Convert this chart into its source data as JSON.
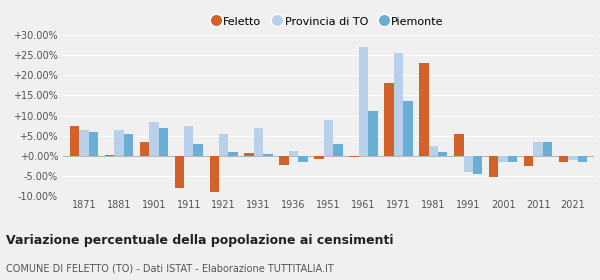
{
  "years": [
    1871,
    1881,
    1901,
    1911,
    1921,
    1931,
    1936,
    1951,
    1961,
    1971,
    1981,
    1991,
    2001,
    2011,
    2021
  ],
  "feletto": [
    7.5,
    0.3,
    3.5,
    -8.0,
    -9.0,
    0.7,
    -2.2,
    -0.8,
    -0.3,
    18.0,
    23.0,
    5.5,
    -5.2,
    -2.5,
    -1.5
  ],
  "provincia_to": [
    6.5,
    6.5,
    8.5,
    7.5,
    5.5,
    7.0,
    1.2,
    9.0,
    27.0,
    25.5,
    2.5,
    -4.0,
    -1.5,
    3.5,
    -1.0
  ],
  "piemonte": [
    6.0,
    5.5,
    7.0,
    3.0,
    1.0,
    0.5,
    -1.5,
    3.0,
    11.0,
    13.5,
    1.0,
    -4.5,
    -1.5,
    3.5,
    -1.5
  ],
  "color_feletto": "#d2622a",
  "color_provincia": "#b8d0ea",
  "color_piemonte": "#6aadd5",
  "title": "Variazione percentuale della popolazione ai censimenti",
  "subtitle": "COMUNE DI FELETTO (TO) - Dati ISTAT - Elaborazione TUTTITALIA.IT",
  "ylim": [
    -10.0,
    30.0
  ],
  "yticks": [
    -10.0,
    -5.0,
    0.0,
    5.0,
    10.0,
    15.0,
    20.0,
    25.0,
    30.0
  ],
  "bg_color": "#f0f0f0",
  "grid_color": "#ffffff"
}
